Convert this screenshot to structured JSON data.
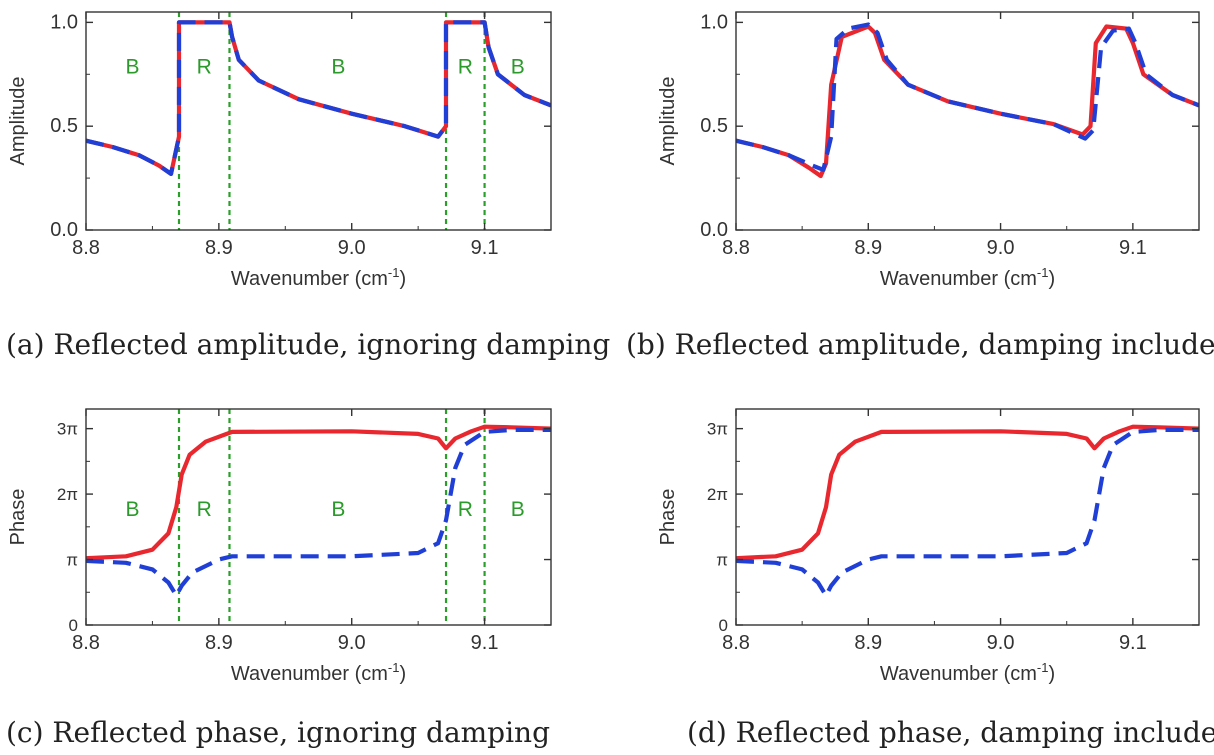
{
  "captions": [
    "(a) Reflected amplitude, ignoring damping",
    "(b) Reflected amplitude, damping included",
    "(c) Reflected phase, ignoring damping",
    "(d) Reflected phase, damping included"
  ],
  "colors": {
    "solid": "#e8282e",
    "dashed": "#1f3fd6",
    "region_line": "#2aa02a",
    "region_text": "#2a9a2a",
    "axis": "#333333"
  },
  "chart_data": [
    {
      "type": "line",
      "panel": "a",
      "xlabel": "Wavenumber (cm",
      "xlabel_sup": "-1",
      "xlabel_tail": ")",
      "ylabel": "Amplitude",
      "xlim": [
        8.8,
        9.15
      ],
      "ylim": [
        0,
        1.05
      ],
      "xticks": [
        8.8,
        8.9,
        9.0,
        9.1
      ],
      "xtick_labels": [
        "8.8",
        "8.9",
        "9.0",
        "9.1"
      ],
      "yticks": [
        0,
        0.5,
        1.0
      ],
      "ytick_labels": [
        "0.0",
        "0.5",
        "1.0"
      ],
      "region_lines": [
        8.87,
        8.908,
        9.071,
        9.1
      ],
      "region_labels": [
        {
          "text": "B",
          "x": 8.835,
          "y": 0.78
        },
        {
          "text": "R",
          "x": 8.889,
          "y": 0.78
        },
        {
          "text": "B",
          "x": 8.99,
          "y": 0.78
        },
        {
          "text": "R",
          "x": 9.0855,
          "y": 0.78
        },
        {
          "text": "B",
          "x": 9.125,
          "y": 0.78
        }
      ],
      "series": [
        {
          "style": "solid",
          "x": [
            8.8,
            8.82,
            8.84,
            8.855,
            8.864,
            8.87,
            8.87,
            8.908,
            8.91,
            8.915,
            8.93,
            8.96,
            9.0,
            9.04,
            9.065,
            9.071,
            9.071,
            9.1,
            9.103,
            9.11,
            9.13,
            9.15
          ],
          "y": [
            0.43,
            0.4,
            0.36,
            0.31,
            0.27,
            0.45,
            1.0,
            1.0,
            0.93,
            0.82,
            0.72,
            0.63,
            0.56,
            0.5,
            0.45,
            0.5,
            1.0,
            1.0,
            0.88,
            0.75,
            0.65,
            0.6
          ]
        },
        {
          "style": "dashed",
          "x": [
            8.8,
            8.82,
            8.84,
            8.855,
            8.864,
            8.87,
            8.87,
            8.908,
            8.91,
            8.915,
            8.93,
            8.96,
            9.0,
            9.04,
            9.065,
            9.071,
            9.071,
            9.1,
            9.103,
            9.11,
            9.13,
            9.15
          ],
          "y": [
            0.43,
            0.4,
            0.36,
            0.31,
            0.27,
            0.45,
            1.0,
            1.0,
            0.93,
            0.82,
            0.72,
            0.63,
            0.56,
            0.5,
            0.45,
            0.5,
            1.0,
            1.0,
            0.88,
            0.75,
            0.65,
            0.6
          ]
        }
      ]
    },
    {
      "type": "line",
      "panel": "b",
      "xlabel": "Wavenumber (cm",
      "xlabel_sup": "-1",
      "xlabel_tail": ")",
      "ylabel": "Amplitude",
      "xlim": [
        8.8,
        9.15
      ],
      "ylim": [
        0,
        1.05
      ],
      "xticks": [
        8.8,
        8.9,
        9.0,
        9.1
      ],
      "xtick_labels": [
        "8.8",
        "8.9",
        "9.0",
        "9.1"
      ],
      "yticks": [
        0,
        0.5,
        1.0
      ],
      "ytick_labels": [
        "0.0",
        "0.5",
        "1.0"
      ],
      "region_lines": [],
      "region_labels": [],
      "series": [
        {
          "style": "solid",
          "x": [
            8.8,
            8.82,
            8.84,
            8.855,
            8.864,
            8.868,
            8.872,
            8.88,
            8.9,
            8.905,
            8.912,
            8.93,
            8.96,
            9.0,
            9.04,
            9.062,
            9.068,
            9.072,
            9.08,
            9.095,
            9.1,
            9.108,
            9.13,
            9.15
          ],
          "y": [
            0.43,
            0.4,
            0.36,
            0.3,
            0.26,
            0.32,
            0.7,
            0.93,
            0.98,
            0.95,
            0.82,
            0.7,
            0.62,
            0.56,
            0.51,
            0.46,
            0.5,
            0.9,
            0.98,
            0.97,
            0.9,
            0.75,
            0.65,
            0.6
          ]
        },
        {
          "style": "dashed",
          "x": [
            8.8,
            8.82,
            8.84,
            8.858,
            8.866,
            8.872,
            8.876,
            8.885,
            8.9,
            8.907,
            8.914,
            8.93,
            8.96,
            9.0,
            9.04,
            9.064,
            9.07,
            9.076,
            9.085,
            9.097,
            9.102,
            9.11,
            9.13,
            9.15
          ],
          "y": [
            0.43,
            0.4,
            0.36,
            0.31,
            0.29,
            0.45,
            0.92,
            0.97,
            0.99,
            0.95,
            0.82,
            0.7,
            0.62,
            0.56,
            0.51,
            0.44,
            0.48,
            0.88,
            0.96,
            0.97,
            0.9,
            0.75,
            0.65,
            0.6
          ]
        }
      ]
    },
    {
      "type": "line",
      "panel": "c",
      "xlabel": "Wavenumber (cm",
      "xlabel_sup": "-1",
      "xlabel_tail": ")",
      "ylabel": "Phase",
      "xlim": [
        8.8,
        9.15
      ],
      "ylim": [
        0,
        3.3
      ],
      "xticks": [
        8.8,
        8.9,
        9.0,
        9.1
      ],
      "xtick_labels": [
        "8.8",
        "8.9",
        "9.0",
        "9.1"
      ],
      "yticks": [
        0,
        1,
        2,
        3
      ],
      "ytick_labels": [
        "0",
        "π",
        "2π",
        "3π"
      ],
      "region_lines": [
        8.87,
        8.908,
        9.071,
        9.1
      ],
      "region_labels": [
        {
          "text": "B",
          "x": 8.835,
          "y": 1.75
        },
        {
          "text": "R",
          "x": 8.889,
          "y": 1.75
        },
        {
          "text": "B",
          "x": 8.99,
          "y": 1.75
        },
        {
          "text": "R",
          "x": 9.0855,
          "y": 1.75
        },
        {
          "text": "B",
          "x": 9.125,
          "y": 1.75
        }
      ],
      "series": [
        {
          "style": "solid",
          "x": [
            8.8,
            8.83,
            8.85,
            8.862,
            8.868,
            8.872,
            8.878,
            8.89,
            8.91,
            9.0,
            9.05,
            9.065,
            9.071,
            9.078,
            9.09,
            9.1,
            9.12,
            9.15
          ],
          "y": [
            1.02,
            1.05,
            1.15,
            1.4,
            1.8,
            2.3,
            2.6,
            2.8,
            2.95,
            2.96,
            2.92,
            2.85,
            2.7,
            2.85,
            2.96,
            3.03,
            3.02,
            3.0
          ]
        },
        {
          "style": "dashed",
          "x": [
            8.8,
            8.83,
            8.85,
            8.862,
            8.868,
            8.872,
            8.88,
            8.9,
            8.91,
            9.0,
            9.05,
            9.065,
            9.071,
            9.078,
            9.085,
            9.1,
            9.12,
            9.15
          ],
          "y": [
            0.98,
            0.95,
            0.85,
            0.65,
            0.45,
            0.6,
            0.8,
            1.0,
            1.05,
            1.05,
            1.1,
            1.25,
            1.6,
            2.4,
            2.75,
            2.95,
            2.98,
            2.98
          ]
        }
      ]
    },
    {
      "type": "line",
      "panel": "d",
      "xlabel": "Wavenumber (cm",
      "xlabel_sup": "-1",
      "xlabel_tail": ")",
      "ylabel": "Phase",
      "xlim": [
        8.8,
        9.15
      ],
      "ylim": [
        0,
        3.3
      ],
      "xticks": [
        8.8,
        8.9,
        9.0,
        9.1
      ],
      "xtick_labels": [
        "8.8",
        "8.9",
        "9.0",
        "9.1"
      ],
      "yticks": [
        0,
        1,
        2,
        3
      ],
      "ytick_labels": [
        "0",
        "π",
        "2π",
        "3π"
      ],
      "region_lines": [],
      "region_labels": [],
      "series": [
        {
          "style": "solid",
          "x": [
            8.8,
            8.83,
            8.85,
            8.862,
            8.868,
            8.872,
            8.878,
            8.89,
            8.91,
            9.0,
            9.05,
            9.065,
            9.071,
            9.078,
            9.09,
            9.1,
            9.12,
            9.15
          ],
          "y": [
            1.02,
            1.05,
            1.15,
            1.4,
            1.8,
            2.3,
            2.6,
            2.8,
            2.95,
            2.96,
            2.92,
            2.85,
            2.7,
            2.85,
            2.96,
            3.03,
            3.02,
            3.0
          ]
        },
        {
          "style": "dashed",
          "x": [
            8.8,
            8.83,
            8.85,
            8.862,
            8.868,
            8.872,
            8.88,
            8.9,
            8.91,
            9.0,
            9.05,
            9.065,
            9.071,
            9.078,
            9.085,
            9.1,
            9.12,
            9.15
          ],
          "y": [
            0.98,
            0.95,
            0.85,
            0.65,
            0.45,
            0.6,
            0.8,
            1.0,
            1.05,
            1.05,
            1.1,
            1.25,
            1.6,
            2.4,
            2.75,
            2.95,
            2.98,
            2.98
          ]
        }
      ]
    }
  ]
}
